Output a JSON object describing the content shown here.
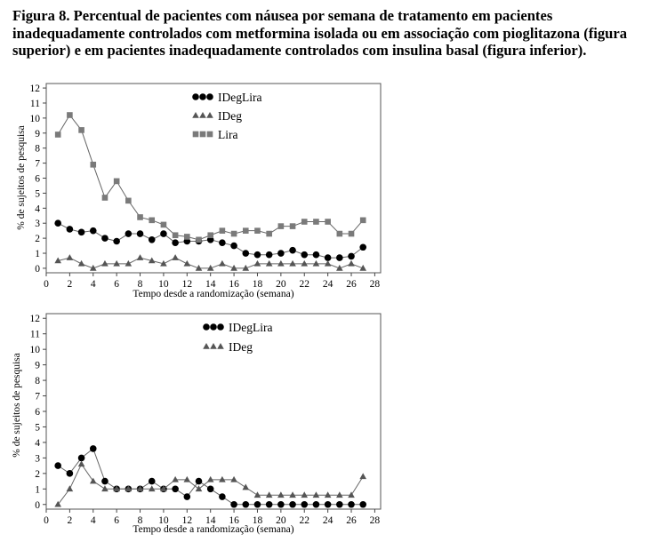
{
  "caption": "Figura 8. Percentual de pacientes com náusea por semana de tratamento em pacientes inadequadamente controlados com metformina isolada ou em associação com pioglitazona (figura superior) e em pacientes inadequadamente controlados com insulina basal (figura inferior).",
  "chart_data": [
    {
      "type": "line",
      "xlabel": "Tempo desde a randomização (semana)",
      "ylabel": "% de sujeitos de pesquisa",
      "xlim": [
        0,
        28.5
      ],
      "ylim": [
        -0.3,
        12.3
      ],
      "xticks": [
        0,
        2,
        4,
        6,
        8,
        10,
        12,
        14,
        16,
        18,
        20,
        22,
        24,
        26,
        28
      ],
      "yticks": [
        0,
        1,
        2,
        3,
        4,
        5,
        6,
        7,
        8,
        9,
        10,
        11,
        12
      ],
      "legend_position": "top-center",
      "x": [
        1,
        2,
        3,
        4,
        5,
        6,
        7,
        8,
        9,
        10,
        11,
        12,
        13,
        14,
        15,
        16,
        17,
        18,
        19,
        20,
        21,
        22,
        23,
        24,
        25,
        26,
        27
      ],
      "series": [
        {
          "name": "IDegLira",
          "marker": "circle",
          "color": "#000000",
          "values": [
            3.0,
            2.6,
            2.4,
            2.5,
            2.0,
            1.8,
            2.3,
            2.3,
            1.9,
            2.3,
            1.7,
            1.8,
            1.8,
            1.9,
            1.7,
            1.5,
            1.0,
            0.9,
            0.9,
            1.0,
            1.2,
            0.9,
            0.9,
            0.7,
            0.7,
            0.8,
            1.4
          ]
        },
        {
          "name": "IDeg",
          "marker": "triangle",
          "color": "#555555",
          "values": [
            0.5,
            0.7,
            0.3,
            0.0,
            0.3,
            0.3,
            0.3,
            0.7,
            0.5,
            0.3,
            0.7,
            0.3,
            0.0,
            0.0,
            0.3,
            0.0,
            0.0,
            0.3,
            0.3,
            0.3,
            0.3,
            0.3,
            0.3,
            0.3,
            0.0,
            0.3,
            0.0
          ]
        },
        {
          "name": "Lira",
          "marker": "square",
          "color": "#7a7a7a",
          "values": [
            8.9,
            10.2,
            9.2,
            6.9,
            4.7,
            5.8,
            4.5,
            3.4,
            3.2,
            2.9,
            2.2,
            2.1,
            1.9,
            2.2,
            2.5,
            2.3,
            2.5,
            2.5,
            2.3,
            2.8,
            2.8,
            3.1,
            3.1,
            3.1,
            2.3,
            2.3,
            3.2
          ]
        }
      ]
    },
    {
      "type": "line",
      "xlabel": "Tempo desde a randomização (semana)",
      "ylabel": "% de sujeitos de pesquisa",
      "xlim": [
        0,
        28.5
      ],
      "ylim": [
        -0.3,
        12.3
      ],
      "xticks": [
        0,
        2,
        4,
        6,
        8,
        10,
        12,
        14,
        16,
        18,
        20,
        22,
        24,
        26,
        28
      ],
      "yticks": [
        0,
        1,
        2,
        3,
        4,
        5,
        6,
        7,
        8,
        9,
        10,
        11,
        12
      ],
      "legend_position": "top-center",
      "x": [
        1,
        2,
        3,
        4,
        5,
        6,
        7,
        8,
        9,
        10,
        11,
        12,
        13,
        14,
        15,
        16,
        17,
        18,
        19,
        20,
        21,
        22,
        23,
        24,
        25,
        26,
        27
      ],
      "series": [
        {
          "name": "IDegLira",
          "marker": "circle",
          "color": "#000000",
          "values": [
            2.5,
            2.0,
            3.0,
            3.6,
            1.5,
            1.0,
            1.0,
            1.0,
            1.5,
            1.0,
            1.0,
            0.5,
            1.5,
            1.0,
            0.5,
            0.0,
            0.0,
            0.0,
            0.0,
            0.0,
            0.0,
            0.0,
            0.0,
            0.0,
            0.0,
            0.0,
            0.0
          ]
        },
        {
          "name": "IDeg",
          "marker": "triangle",
          "color": "#555555",
          "values": [
            0.0,
            1.0,
            2.6,
            1.5,
            1.0,
            1.0,
            1.0,
            1.0,
            1.0,
            1.0,
            1.6,
            1.6,
            1.0,
            1.6,
            1.6,
            1.6,
            1.1,
            0.6,
            0.6,
            0.6,
            0.6,
            0.6,
            0.6,
            0.6,
            0.6,
            0.6,
            1.8
          ]
        }
      ]
    }
  ]
}
